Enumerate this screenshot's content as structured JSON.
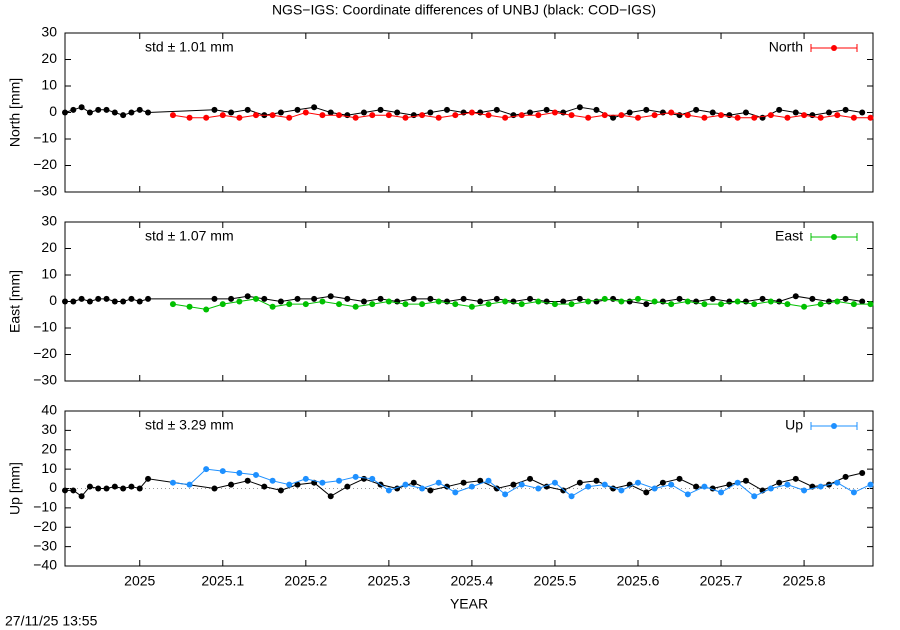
{
  "title": "NGS−IGS: Coordinate differences of UNBJ (black: COD−IGS)",
  "timestamp": "27/11/25 13:55",
  "chart_data": [
    {
      "type": "line",
      "ylabel": "North [mm]",
      "annotation": "std ± 1.01 mm",
      "legend": "upper right",
      "xlim": [
        2024.91,
        2025.883
      ],
      "xticks": [
        2025,
        2025.1,
        2025.2,
        2025.3,
        2025.4,
        2025.5,
        2025.6,
        2025.7,
        2025.8
      ],
      "ylim": [
        -30,
        30
      ],
      "yticks": [
        {
          "value": -30,
          "label": "−30"
        },
        {
          "value": -20,
          "label": "−20"
        },
        {
          "value": -10,
          "label": "−10"
        },
        0,
        10,
        20,
        30
      ],
      "series": [
        {
          "color": "#000000",
          "x": [
            2024.91,
            2024.92,
            2024.93,
            2024.94,
            2024.95,
            2024.96,
            2024.97,
            2024.98,
            2024.99,
            2025.0,
            2025.01,
            2025.09,
            2025.11,
            2025.13,
            2025.15,
            2025.17,
            2025.19,
            2025.21,
            2025.23,
            2025.25,
            2025.27,
            2025.29,
            2025.31,
            2025.33,
            2025.35,
            2025.37,
            2025.39,
            2025.41,
            2025.43,
            2025.45,
            2025.47,
            2025.49,
            2025.51,
            2025.53,
            2025.55,
            2025.57,
            2025.59,
            2025.61,
            2025.63,
            2025.65,
            2025.67,
            2025.69,
            2025.71,
            2025.73,
            2025.75,
            2025.77,
            2025.79,
            2025.81,
            2025.83,
            2025.85,
            2025.87
          ],
          "values": [
            0,
            1,
            2,
            0,
            1,
            1,
            0,
            -1,
            0,
            1,
            0,
            1,
            0,
            1,
            -1,
            0,
            1,
            2,
            0,
            -1,
            0,
            1,
            0,
            -1,
            0,
            1,
            0,
            0,
            1,
            -1,
            0,
            1,
            0,
            2,
            1,
            -2,
            0,
            1,
            0,
            -1,
            1,
            0,
            -1,
            0,
            -2,
            1,
            0,
            -1,
            0,
            1,
            0
          ]
        },
        {
          "name": "North",
          "color": "#ff0000",
          "x": [
            2025.04,
            2025.06,
            2025.08,
            2025.1,
            2025.12,
            2025.14,
            2025.16,
            2025.18,
            2025.2,
            2025.22,
            2025.24,
            2025.26,
            2025.28,
            2025.3,
            2025.32,
            2025.34,
            2025.36,
            2025.38,
            2025.4,
            2025.42,
            2025.44,
            2025.46,
            2025.48,
            2025.5,
            2025.52,
            2025.54,
            2025.56,
            2025.58,
            2025.6,
            2025.62,
            2025.64,
            2025.66,
            2025.68,
            2025.7,
            2025.72,
            2025.74,
            2025.76,
            2025.78,
            2025.8,
            2025.82,
            2025.84,
            2025.86,
            2025.88
          ],
          "values": [
            -1,
            -2,
            -2,
            -1,
            -2,
            -1,
            -1,
            -2,
            0,
            -1,
            -1,
            -2,
            -1,
            -1,
            -2,
            -1,
            -2,
            -1,
            0,
            -1,
            -2,
            -1,
            -1,
            0,
            -1,
            -2,
            -1,
            -1,
            -2,
            -1,
            0,
            -1,
            -2,
            -1,
            -2,
            -2,
            -1,
            -2,
            -1,
            -2,
            -1,
            -2,
            -2
          ]
        }
      ]
    },
    {
      "type": "line",
      "ylabel": "East [mm]",
      "annotation": "std ± 1.07 mm",
      "legend": "upper right",
      "xlim": [
        2024.91,
        2025.883
      ],
      "xticks": [
        2025,
        2025.1,
        2025.2,
        2025.3,
        2025.4,
        2025.5,
        2025.6,
        2025.7,
        2025.8
      ],
      "ylim": [
        -30,
        30
      ],
      "yticks": [
        {
          "value": -30,
          "label": "−30"
        },
        {
          "value": -20,
          "label": "−20"
        },
        {
          "value": -10,
          "label": "−10"
        },
        0,
        10,
        20,
        30
      ],
      "series": [
        {
          "color": "#000000",
          "x": [
            2024.91,
            2024.92,
            2024.93,
            2024.94,
            2024.95,
            2024.96,
            2024.97,
            2024.98,
            2024.99,
            2025.0,
            2025.01,
            2025.09,
            2025.11,
            2025.13,
            2025.15,
            2025.17,
            2025.19,
            2025.21,
            2025.23,
            2025.25,
            2025.27,
            2025.29,
            2025.31,
            2025.33,
            2025.35,
            2025.37,
            2025.39,
            2025.41,
            2025.43,
            2025.45,
            2025.47,
            2025.49,
            2025.51,
            2025.53,
            2025.55,
            2025.57,
            2025.59,
            2025.61,
            2025.63,
            2025.65,
            2025.67,
            2025.69,
            2025.71,
            2025.73,
            2025.75,
            2025.77,
            2025.79,
            2025.81,
            2025.83,
            2025.85,
            2025.87
          ],
          "values": [
            0,
            0,
            1,
            0,
            1,
            1,
            0,
            0,
            1,
            0,
            1,
            1,
            1,
            2,
            1,
            0,
            1,
            1,
            2,
            1,
            0,
            1,
            0,
            1,
            1,
            0,
            1,
            0,
            1,
            0,
            1,
            0,
            0,
            1,
            0,
            1,
            0,
            -1,
            0,
            1,
            0,
            1,
            0,
            0,
            1,
            0,
            2,
            1,
            0,
            1,
            0
          ]
        },
        {
          "name": "East",
          "color": "#00c000",
          "x": [
            2025.04,
            2025.06,
            2025.08,
            2025.1,
            2025.12,
            2025.14,
            2025.16,
            2025.18,
            2025.2,
            2025.22,
            2025.24,
            2025.26,
            2025.28,
            2025.3,
            2025.32,
            2025.34,
            2025.36,
            2025.38,
            2025.4,
            2025.42,
            2025.44,
            2025.46,
            2025.48,
            2025.5,
            2025.52,
            2025.54,
            2025.56,
            2025.58,
            2025.6,
            2025.62,
            2025.64,
            2025.66,
            2025.68,
            2025.7,
            2025.72,
            2025.74,
            2025.76,
            2025.78,
            2025.8,
            2025.82,
            2025.84,
            2025.86,
            2025.88
          ],
          "values": [
            -1,
            -2,
            -3,
            -1,
            0,
            1,
            -2,
            -1,
            -1,
            0,
            -1,
            -2,
            -1,
            0,
            -1,
            -1,
            0,
            -1,
            -2,
            -1,
            0,
            -1,
            0,
            -1,
            -1,
            0,
            1,
            0,
            1,
            0,
            -1,
            0,
            -1,
            -1,
            0,
            -1,
            0,
            -1,
            -2,
            -1,
            0,
            -1,
            -1
          ]
        }
      ]
    },
    {
      "type": "line",
      "ylabel": "Up [mm]",
      "xlabel": "YEAR",
      "annotation": "std ± 3.29 mm",
      "legend": "upper right",
      "zero_line": true,
      "xlim": [
        2024.91,
        2025.883
      ],
      "xticks": [
        2025,
        2025.1,
        2025.2,
        2025.3,
        2025.4,
        2025.5,
        2025.6,
        2025.7,
        2025.8
      ],
      "ylim": [
        -40,
        40
      ],
      "yticks": [
        {
          "value": -40,
          "label": "−40"
        },
        {
          "value": -30,
          "label": "−30"
        },
        {
          "value": -20,
          "label": "−20"
        },
        {
          "value": -10,
          "label": "−10"
        },
        0,
        10,
        20,
        30,
        40
      ],
      "series": [
        {
          "color": "#000000",
          "x": [
            2024.91,
            2024.92,
            2024.93,
            2024.94,
            2024.95,
            2024.96,
            2024.97,
            2024.98,
            2024.99,
            2025.0,
            2025.01,
            2025.09,
            2025.11,
            2025.13,
            2025.15,
            2025.17,
            2025.19,
            2025.21,
            2025.23,
            2025.25,
            2025.27,
            2025.29,
            2025.31,
            2025.33,
            2025.35,
            2025.37,
            2025.39,
            2025.41,
            2025.43,
            2025.45,
            2025.47,
            2025.49,
            2025.51,
            2025.53,
            2025.55,
            2025.57,
            2025.59,
            2025.61,
            2025.63,
            2025.65,
            2025.67,
            2025.69,
            2025.71,
            2025.73,
            2025.75,
            2025.77,
            2025.79,
            2025.81,
            2025.83,
            2025.85,
            2025.87
          ],
          "values": [
            -1,
            -1,
            -4,
            1,
            0,
            0,
            1,
            0,
            1,
            0,
            5,
            0,
            2,
            4,
            1,
            -1,
            2,
            3,
            -4,
            1,
            5,
            2,
            0,
            3,
            -1,
            1,
            3,
            4,
            0,
            2,
            5,
            1,
            -1,
            3,
            4,
            0,
            2,
            -2,
            3,
            5,
            1,
            0,
            2,
            4,
            -1,
            3,
            5,
            1,
            2,
            6,
            8
          ]
        },
        {
          "name": "Up",
          "color": "#1e90ff",
          "x": [
            2025.04,
            2025.06,
            2025.08,
            2025.1,
            2025.12,
            2025.14,
            2025.16,
            2025.18,
            2025.2,
            2025.22,
            2025.24,
            2025.26,
            2025.28,
            2025.3,
            2025.32,
            2025.34,
            2025.36,
            2025.38,
            2025.4,
            2025.42,
            2025.44,
            2025.46,
            2025.48,
            2025.5,
            2025.52,
            2025.54,
            2025.56,
            2025.58,
            2025.6,
            2025.62,
            2025.64,
            2025.66,
            2025.68,
            2025.7,
            2025.72,
            2025.74,
            2025.76,
            2025.78,
            2025.8,
            2025.82,
            2025.84,
            2025.86,
            2025.88
          ],
          "values": [
            3,
            2,
            10,
            9,
            8,
            7,
            4,
            2,
            5,
            3,
            4,
            6,
            5,
            -1,
            2,
            0,
            3,
            -2,
            1,
            4,
            -3,
            2,
            0,
            3,
            -4,
            1,
            2,
            -1,
            3,
            0,
            2,
            -3,
            1,
            -2,
            3,
            -4,
            0,
            2,
            -1,
            1,
            3,
            -2,
            2
          ]
        }
      ]
    }
  ]
}
